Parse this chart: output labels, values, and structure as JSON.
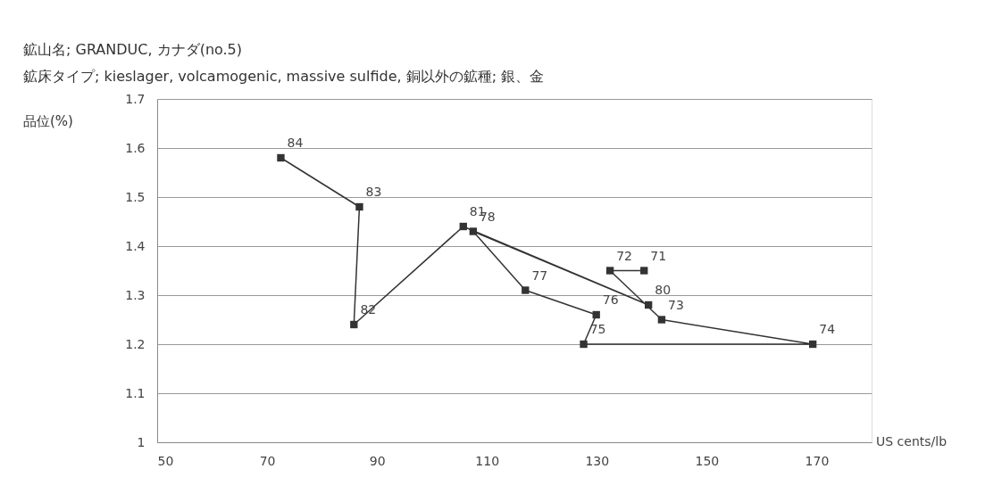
{
  "chart_data": {
    "type": "line",
    "title": "鉱山名; GRANDUC, カナダ(no.5)",
    "subtitle": "鉱床タイプ; kieslager, volcamogenic, massive sulfide, 銅以外の鉱種; 銀、金",
    "xlabel": "US cents/lb",
    "ylabel": "品位(%)",
    "series": [
      {
        "color": "#333333",
        "x": [
          138.6,
          132.4,
          141.8,
          169.3,
          127.6,
          129.9,
          117.0,
          107.5,
          139.4,
          105.7,
          85.8,
          86.8,
          72.5
        ],
        "values": [
          1.35,
          1.35,
          1.25,
          1.2,
          1.2,
          1.26,
          1.31,
          1.43,
          1.28,
          1.44,
          1.24,
          1.48,
          1.58
        ]
      }
    ],
    "xlim": [
      50,
      180
    ],
    "xticks": [
      50,
      70,
      90,
      110,
      130,
      150,
      170
    ],
    "ylim": [
      1,
      1.7
    ],
    "yticks": [
      1,
      1.1,
      1.2,
      1.3,
      1.4,
      1.5,
      1.6,
      1.7
    ],
    "grid": "y",
    "marker": "square",
    "line_style": "solid",
    "annotations": [
      {
        "text": "71",
        "x": 138.6,
        "y": 1.35
      },
      {
        "text": "72",
        "x": 132.4,
        "y": 1.35
      },
      {
        "text": "73",
        "x": 141.8,
        "y": 1.25
      },
      {
        "text": "74",
        "x": 169.3,
        "y": 1.2
      },
      {
        "text": "75",
        "x": 127.6,
        "y": 1.2
      },
      {
        "text": "76",
        "x": 129.9,
        "y": 1.26
      },
      {
        "text": "77",
        "x": 117.0,
        "y": 1.31
      },
      {
        "text": "78",
        "x": 107.5,
        "y": 1.43
      },
      {
        "text": "80",
        "x": 139.4,
        "y": 1.28
      },
      {
        "text": "81",
        "x": 105.7,
        "y": 1.44
      },
      {
        "text": "82",
        "x": 85.8,
        "y": 1.24
      },
      {
        "text": "83",
        "x": 86.8,
        "y": 1.48
      },
      {
        "text": "84",
        "x": 72.5,
        "y": 1.58
      }
    ]
  }
}
